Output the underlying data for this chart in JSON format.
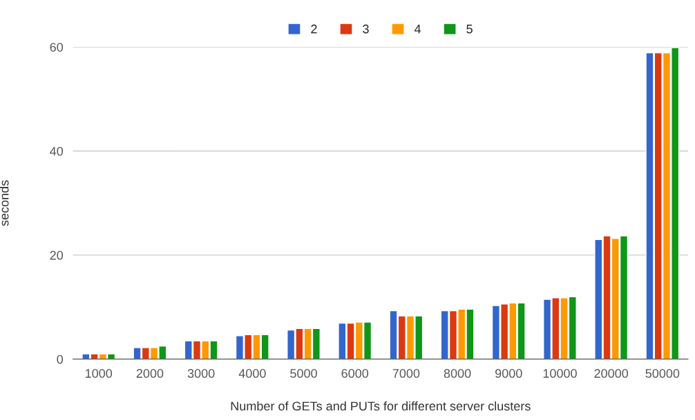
{
  "chart_data": {
    "type": "bar",
    "categories": [
      "1000",
      "2000",
      "3000",
      "4000",
      "5000",
      "6000",
      "7000",
      "8000",
      "9000",
      "10000",
      "20000",
      "50000"
    ],
    "series": [
      {
        "name": "2",
        "color": "#3366cc",
        "values": [
          1.0,
          2.2,
          3.5,
          4.5,
          5.6,
          6.9,
          9.3,
          9.3,
          10.3,
          11.5,
          23.0,
          58.9
        ]
      },
      {
        "name": "3",
        "color": "#dc3912",
        "values": [
          1.0,
          2.2,
          3.5,
          4.7,
          5.9,
          6.9,
          8.3,
          9.3,
          10.6,
          11.8,
          23.7,
          58.9
        ]
      },
      {
        "name": "4",
        "color": "#ff9900",
        "values": [
          1.0,
          2.2,
          3.5,
          4.7,
          5.9,
          7.1,
          8.3,
          9.6,
          10.8,
          11.8,
          23.2,
          58.9
        ]
      },
      {
        "name": "5",
        "color": "#109618",
        "values": [
          1.0,
          2.5,
          3.5,
          4.7,
          5.9,
          7.1,
          8.3,
          9.6,
          10.8,
          12.0,
          23.7,
          59.9
        ]
      }
    ],
    "xlabel": "Number of GETs and PUTs for different server clusters",
    "ylabel": "seconds",
    "ylim": [
      0,
      60
    ],
    "yticks": [
      0,
      20,
      40,
      60
    ],
    "grid": "y",
    "legend": "top"
  }
}
